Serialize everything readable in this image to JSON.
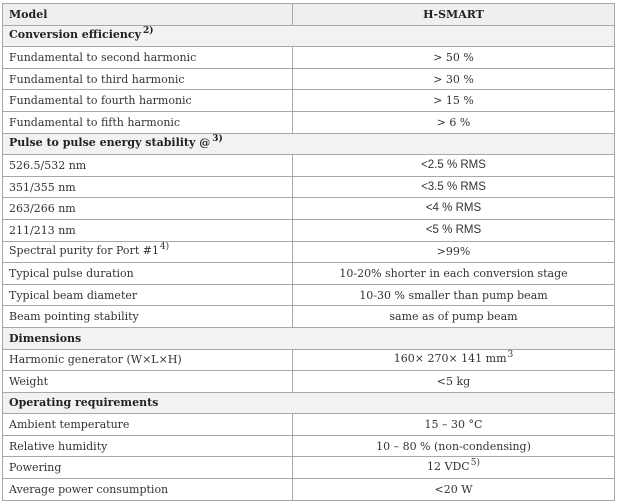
{
  "table": {
    "header": {
      "label": "Model",
      "value": "H-SMART"
    },
    "sections": [
      {
        "title": "Conversion efficiency",
        "note": "2)",
        "rows": [
          {
            "label": "Fundamental to second harmonic",
            "value": "> 50 %"
          },
          {
            "label": "Fundamental to third harmonic",
            "value": "> 30 %"
          },
          {
            "label": "Fundamental to fourth harmonic",
            "value": "> 15 %"
          },
          {
            "label": "Fundamental to fifth harmonic",
            "value": "> 6 %"
          }
        ]
      },
      {
        "title": "Pulse to pulse energy stability @",
        "note": "3)",
        "rows": [
          {
            "label": "526.5/532 nm",
            "value": "<2.5 % RMS"
          },
          {
            "label": "351/355 nm",
            "value": "<3.5 % RMS"
          },
          {
            "label": "263/266 nm",
            "value": "<4 % RMS"
          },
          {
            "label": "211/213 nm",
            "value": "<5 % RMS"
          },
          {
            "label": "Spectral purity for Port #1",
            "label_note": "4)",
            "value": ">99%"
          },
          {
            "label": "Typical pulse duration",
            "value": "10-20% shorter in each conversion stage"
          },
          {
            "label": "Typical beam diameter",
            "value": "10-30 % smaller than pump beam"
          },
          {
            "label": "Beam pointing stability",
            "value": "same as of pump beam"
          }
        ]
      },
      {
        "title": "Dimensions",
        "rows": [
          {
            "label": "Harmonic generator (W×L×H)",
            "value": "160× 270× 141 mm",
            "value_note": "3"
          },
          {
            "label": "Weight",
            "value": "<5 kg"
          }
        ]
      },
      {
        "title": "Operating requirements",
        "rows": [
          {
            "label": "Ambient temperature",
            "value": "15 – 30 °C"
          },
          {
            "label": "Relative humidity",
            "value": "10 – 80 % (non-condensing)"
          },
          {
            "label": "Powering",
            "value": "12 VDC",
            "value_note": "5)"
          },
          {
            "label": "Average power consumption",
            "value": "<20 W"
          }
        ]
      }
    ]
  }
}
